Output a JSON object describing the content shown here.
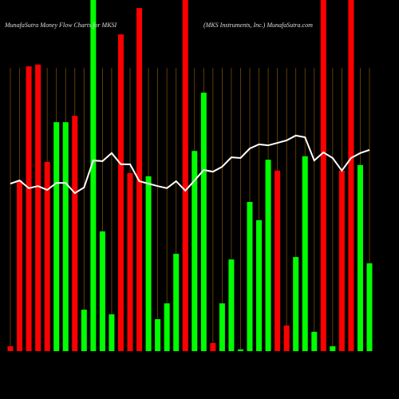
{
  "chart_data": {
    "type": "bar",
    "title": "MunafaSutra  Money Flow  Charts for MKSI",
    "subtitle": "(MKS Instruments, Inc.) MunafaSutra.com",
    "ylim": [
      0,
      100
    ],
    "values": [
      1.4,
      48.6,
      81.1,
      81.6,
      53.9,
      65.2,
      65.2,
      67.0,
      11.8,
      100,
      34.1,
      10.5,
      90.2,
      50.7,
      97.7,
      49.8,
      9.1,
      13.6,
      27.7,
      100,
      57.0,
      73.6,
      2.3,
      13.6,
      26.1,
      0.5,
      42.5,
      37.3,
      54.5,
      51.4,
      7.3,
      26.8,
      55.5,
      5.5,
      100,
      1.4,
      51.4,
      100,
      53.0,
      25.0
    ],
    "bar_colors": [
      "#ff0000",
      "#ff0000",
      "#ff0000",
      "#ff0000",
      "#ff0000",
      "#00ff00",
      "#00ff00",
      "#ff0000",
      "#00ff00",
      "#00ff00",
      "#00ff00",
      "#00ff00",
      "#ff0000",
      "#ff0000",
      "#ff0000",
      "#00ff00",
      "#00ff00",
      "#00ff00",
      "#00ff00",
      "#ff0000",
      "#00ff00",
      "#00ff00",
      "#ff0000",
      "#00ff00",
      "#00ff00",
      "#00ff00",
      "#00ff00",
      "#00ff00",
      "#00ff00",
      "#ff0000",
      "#ff0000",
      "#00ff00",
      "#00ff00",
      "#00ff00",
      "#ff0000",
      "#00ff00",
      "#ff0000",
      "#ff0000",
      "#00ff00",
      "#00ff00"
    ],
    "line_values": [
      47.7,
      48.6,
      46.4,
      47.0,
      45.9,
      47.9,
      47.9,
      45.0,
      46.6,
      54.3,
      54.1,
      56.4,
      53.2,
      53.2,
      48.4,
      47.7,
      47.0,
      46.4,
      48.4,
      45.7,
      48.6,
      51.6,
      51.1,
      52.5,
      55.2,
      55.0,
      57.7,
      58.9,
      58.6,
      59.3,
      60.0,
      61.4,
      60.9,
      54.3,
      56.6,
      55.0,
      51.4,
      55.0,
      56.4,
      57.3
    ],
    "line_color": "#ffffff",
    "grid_color": "#7a4a00"
  }
}
